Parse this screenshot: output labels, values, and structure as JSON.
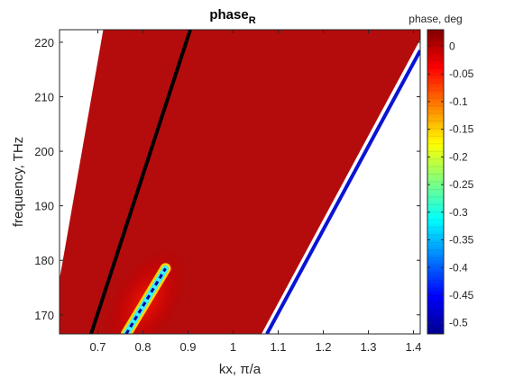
{
  "chart_data": {
    "type": "heatmap",
    "title": "phase",
    "title_subscript": "R",
    "xlabel": "kx, π/a",
    "ylabel": "frequency, THz",
    "xlim": [
      0.615,
      1.415
    ],
    "ylim": [
      166.5,
      222.3
    ],
    "x_ticks": [
      "0.7",
      "0.8",
      "0.9",
      "1",
      "1.1",
      "1.2",
      "1.3",
      "1.4"
    ],
    "x_tick_values": [
      0.7,
      0.8,
      0.9,
      1.0,
      1.1,
      1.2,
      1.3,
      1.4
    ],
    "y_ticks": [
      "170",
      "180",
      "190",
      "200",
      "210",
      "220"
    ],
    "y_tick_values": [
      170,
      180,
      190,
      200,
      210,
      220
    ],
    "grid": false,
    "colorbar": {
      "label": "phase, deg",
      "range": [
        -0.52,
        0.03
      ],
      "ticks": [
        "0",
        "-0.05",
        "-0.1",
        "-0.15",
        "-0.2",
        "-0.25",
        "-0.3",
        "-0.35",
        "-0.4",
        "-0.45",
        "-0.5"
      ],
      "tick_values": [
        0,
        -0.05,
        -0.1,
        -0.15,
        -0.2,
        -0.25,
        -0.3,
        -0.35,
        -0.4,
        -0.45,
        -0.5
      ],
      "colormap": "jet"
    },
    "filled_region": {
      "value": 0,
      "polygon": [
        [
          0.615,
          166.5
        ],
        [
          0.615,
          176.5
        ],
        [
          0.712,
          222.3
        ],
        [
          1.415,
          222.3
        ],
        [
          1.415,
          220.5
        ],
        [
          1.063,
          166.5
        ]
      ]
    },
    "lines": [
      {
        "color": "#000000",
        "points": [
          [
            0.685,
            166.5
          ],
          [
            0.905,
            222.3
          ]
        ]
      },
      {
        "color": "#0a14d2",
        "points": [
          [
            1.075,
            166.5
          ],
          [
            1.415,
            218.5
          ]
        ]
      }
    ],
    "resonance_feature": {
      "points": [
        [
          0.763,
          166.5
        ],
        [
          0.85,
          178.5
        ]
      ],
      "min_value": -0.5
    },
    "colors": {
      "axis": "#262626",
      "black_line": "#000000",
      "blue_line": "#0a14d2"
    }
  }
}
